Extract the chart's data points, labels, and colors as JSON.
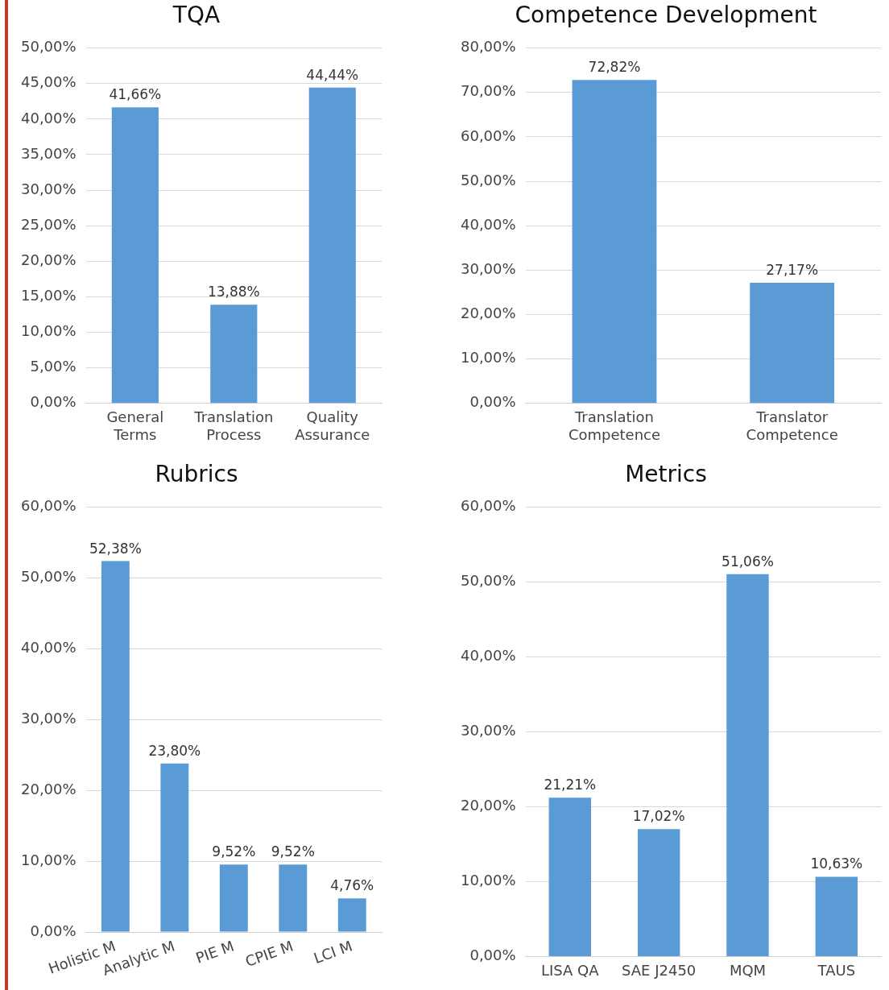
{
  "chart_data": [
    {
      "type": "bar",
      "title": "TQA",
      "categories": [
        "General Terms",
        "Translation Process",
        "Quality Assurance"
      ],
      "values": [
        41.66,
        13.88,
        44.44
      ],
      "value_labels": [
        "41,66%",
        "13,88%",
        "44,44%"
      ],
      "color": "#5b9bd5",
      "ylim": [
        0,
        50
      ],
      "yticks": [
        {
          "value": 0,
          "label": "0,00%"
        },
        {
          "value": 5,
          "label": "5,00%"
        },
        {
          "value": 10,
          "label": "10,00%"
        },
        {
          "value": 15,
          "label": "15,00%"
        },
        {
          "value": 20,
          "label": "20,00%"
        },
        {
          "value": 25,
          "label": "25,00%"
        },
        {
          "value": 30,
          "label": "30,00%"
        },
        {
          "value": 35,
          "label": "35,00%"
        },
        {
          "value": 40,
          "label": "40,00%"
        },
        {
          "value": 45,
          "label": "45,00%"
        },
        {
          "value": 50,
          "label": "50,00%"
        }
      ],
      "grid": "y",
      "legend": false
    },
    {
      "type": "bar",
      "title": "Competence Development",
      "categories": [
        "Translation Competence",
        "Translator Competence"
      ],
      "values": [
        72.82,
        27.17
      ],
      "value_labels": [
        "72,82%",
        "27,17%"
      ],
      "color": "#5b9bd5",
      "ylim": [
        0,
        80
      ],
      "yticks": [
        {
          "value": 0,
          "label": "0,00%"
        },
        {
          "value": 10,
          "label": "10,00%"
        },
        {
          "value": 20,
          "label": "20,00%"
        },
        {
          "value": 30,
          "label": "30,00%"
        },
        {
          "value": 40,
          "label": "40,00%"
        },
        {
          "value": 50,
          "label": "50,00%"
        },
        {
          "value": 60,
          "label": "60,00%"
        },
        {
          "value": 70,
          "label": "70,00%"
        },
        {
          "value": 80,
          "label": "80,00%"
        }
      ],
      "grid": "y",
      "legend": false
    },
    {
      "type": "bar",
      "title": "Rubrics",
      "categories": [
        "Holistic M",
        "Analytic M",
        "PIE M",
        "CPIE M",
        "LCI M"
      ],
      "values": [
        52.38,
        23.8,
        9.52,
        9.52,
        4.76
      ],
      "value_labels": [
        "52,38%",
        "23,80%",
        "9,52%",
        "9,52%",
        "4,76%"
      ],
      "color": "#5b9bd5",
      "ylim": [
        0,
        60
      ],
      "yticks": [
        {
          "value": 0,
          "label": "0,00%"
        },
        {
          "value": 10,
          "label": "10,00%"
        },
        {
          "value": 20,
          "label": "20,00%"
        },
        {
          "value": 30,
          "label": "30,00%"
        },
        {
          "value": 40,
          "label": "40,00%"
        },
        {
          "value": 50,
          "label": "50,00%"
        },
        {
          "value": 60,
          "label": "60,00%"
        }
      ],
      "grid": "y",
      "legend": false
    },
    {
      "type": "bar",
      "title": "Metrics",
      "categories": [
        "LISA QA",
        "SAE J2450",
        "MQM",
        "TAUS"
      ],
      "values": [
        21.21,
        17.02,
        51.06,
        10.63
      ],
      "value_labels": [
        "21,21%",
        "17,02%",
        "51,06%",
        "10,63%"
      ],
      "color": "#5b9bd5",
      "ylim": [
        0,
        60
      ],
      "yticks": [
        {
          "value": 0,
          "label": "0,00%"
        },
        {
          "value": 10,
          "label": "10,00%"
        },
        {
          "value": 20,
          "label": "20,00%"
        },
        {
          "value": 30,
          "label": "30,00%"
        },
        {
          "value": 40,
          "label": "40,00%"
        },
        {
          "value": 50,
          "label": "50,00%"
        },
        {
          "value": 60,
          "label": "60,00%"
        }
      ],
      "grid": "y",
      "legend": false
    }
  ]
}
